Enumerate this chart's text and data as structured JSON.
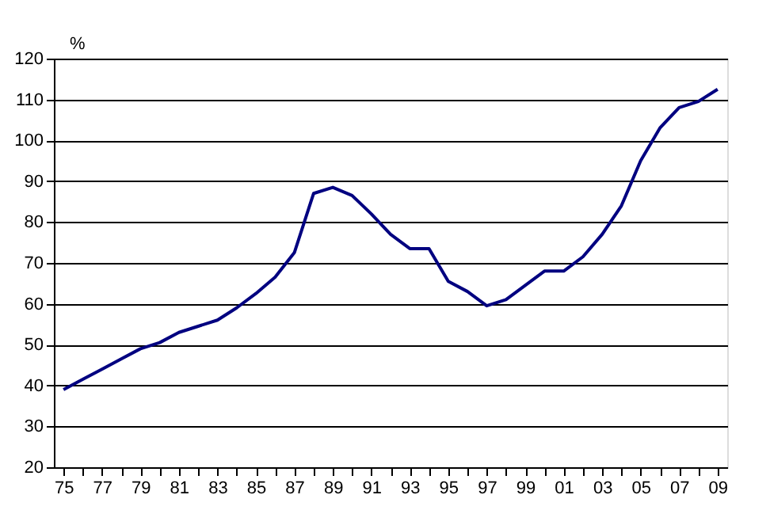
{
  "chart_data": {
    "type": "line",
    "ylabel": "%",
    "categories": [
      "75",
      null,
      "77",
      null,
      "79",
      null,
      "81",
      null,
      "83",
      null,
      "85",
      null,
      "87",
      null,
      "89",
      null,
      "91",
      null,
      "93",
      null,
      "95",
      null,
      "97",
      null,
      "99",
      null,
      "01",
      null,
      "03",
      null,
      "05",
      null,
      "07",
      null,
      "09"
    ],
    "series": [
      {
        "color": "#000080",
        "values": [
          39,
          41.5,
          44,
          46.5,
          49,
          50.5,
          53,
          54.5,
          56,
          59,
          62.5,
          66.5,
          72.5,
          87,
          88.5,
          86.5,
          82,
          77,
          73.5,
          73.5,
          65.5,
          63,
          59.5,
          61,
          64.5,
          68,
          68,
          71.5,
          77,
          84,
          95,
          103,
          108,
          109.5,
          112.5
        ]
      }
    ],
    "ylim": [
      20,
      120
    ],
    "yticks": [
      20,
      30,
      40,
      50,
      60,
      70,
      80,
      90,
      100,
      110,
      120
    ],
    "grid": "y",
    "marker": "none",
    "line_style": "solid"
  }
}
